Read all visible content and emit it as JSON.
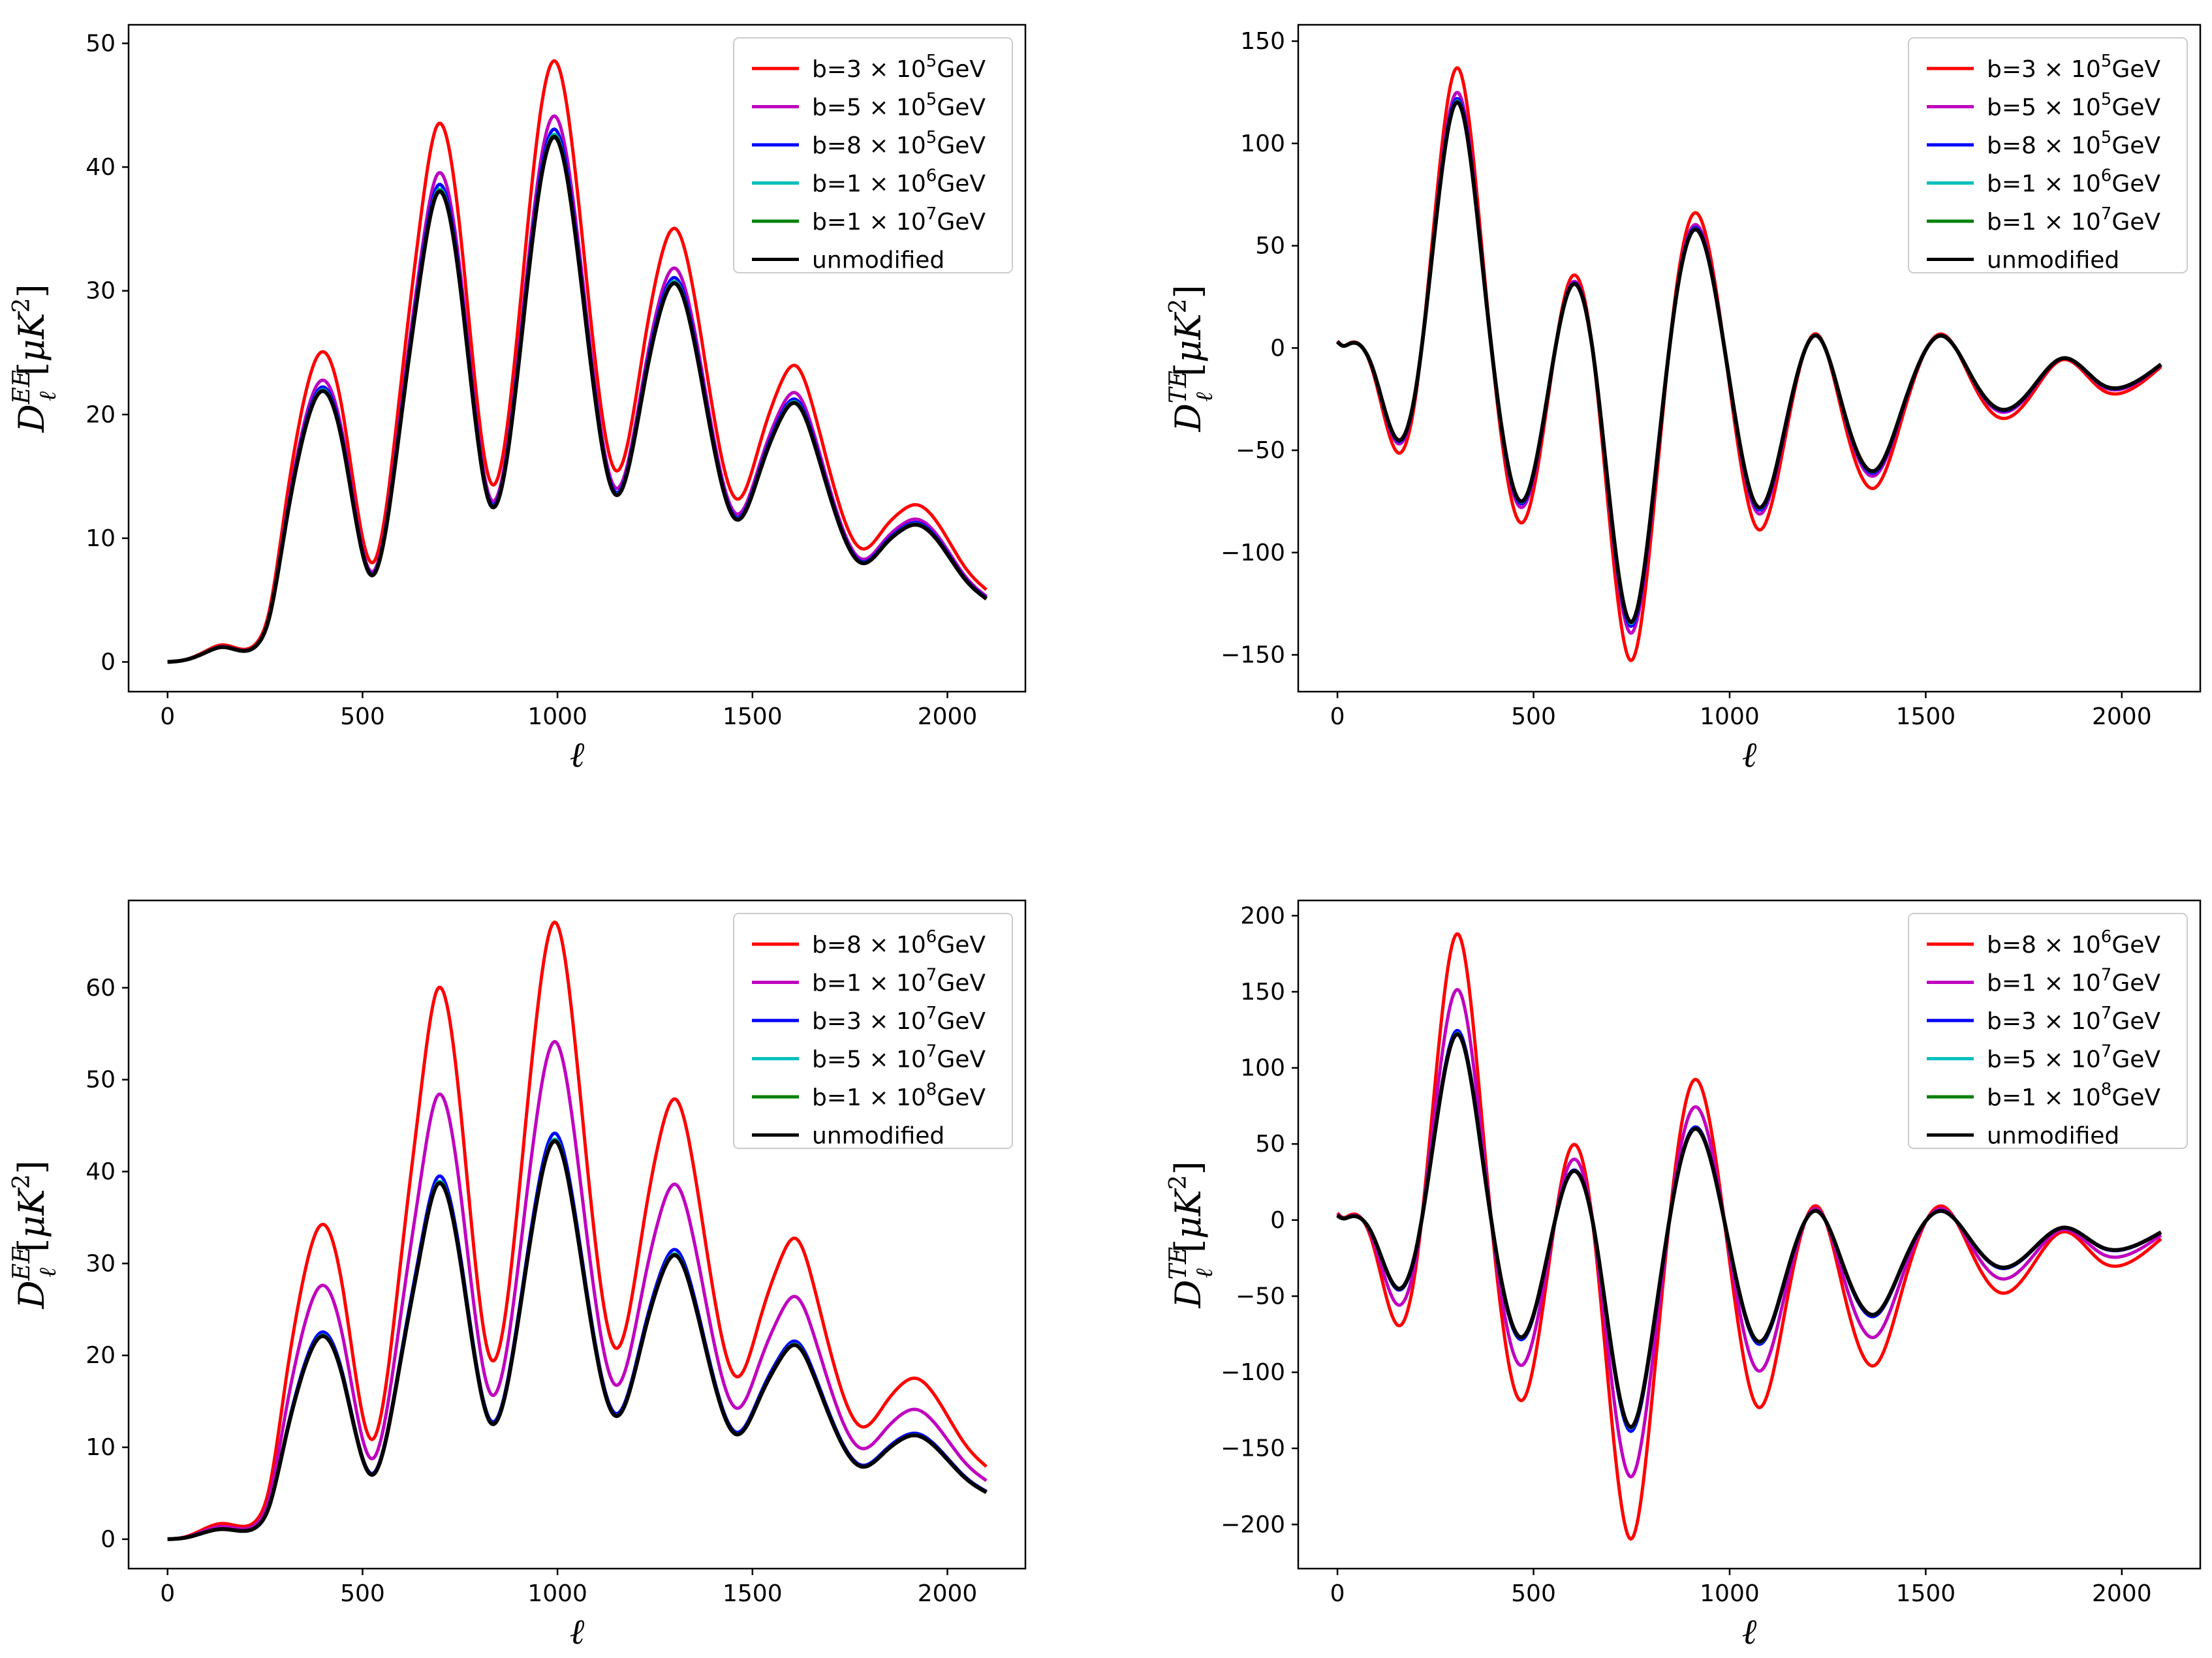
{
  "figure": {
    "description_free": true
  },
  "series_colors": [
    "#ff0000",
    "#bf00bf",
    "#0000ff",
    "#00bfbf",
    "#008000",
    "#000000"
  ],
  "chart_data": [
    {
      "type": "line",
      "panel": "top-left",
      "spectrum": "EE",
      "xlabel": "ℓ",
      "ylabel": "D_ℓ^EE[μK²]",
      "ylabel_base": "D",
      "ylabel_sub": "ℓ",
      "ylabel_sup": "EE",
      "ylabel_unit_open": "[",
      "ylabel_unit": "μK",
      "ylabel_unit_sup": "2",
      "ylabel_unit_close": "]",
      "xlim": [
        -100,
        2200
      ],
      "ylim": [
        -2.4,
        51.5
      ],
      "xticks": [
        0,
        500,
        1000,
        1500,
        2000
      ],
      "yticks": [
        0,
        10,
        20,
        30,
        40,
        50
      ],
      "legend_position": "top-right",
      "scale_factors": [
        1.145,
        1.04,
        1.015,
        1.005,
        1.002,
        1.0
      ],
      "series": [
        {
          "name": "b=3 × 10⁵GeV",
          "label": "b=3",
          "mult": "3",
          "exp": "5",
          "unit": "GeV"
        },
        {
          "name": "b=5 × 10⁵GeV",
          "label": "b=5",
          "mult": "5",
          "exp": "5",
          "unit": "GeV"
        },
        {
          "name": "b=8 × 10⁵GeV",
          "label": "b=8",
          "mult": "8",
          "exp": "5",
          "unit": "GeV"
        },
        {
          "name": "b=1 × 10⁶GeV",
          "label": "b=1",
          "mult": "1",
          "exp": "6",
          "unit": "GeV"
        },
        {
          "name": "b=1 × 10⁷GeV",
          "label": "b=1",
          "mult": "1",
          "exp": "7",
          "unit": "GeV"
        },
        {
          "name": "unmodified",
          "label": "unmodified"
        }
      ],
      "base_curve": {
        "x": [
          0,
          50,
          100,
          140,
          190,
          230,
          260,
          300,
          350,
          397,
          450,
          525,
          600,
          650,
          692,
          750,
          830,
          900,
          950,
          995,
          1050,
          1150,
          1220,
          1265,
          1302,
          1350,
          1460,
          1520,
          1570,
          1612,
          1660,
          1780,
          1840,
          1880,
          1918,
          1970,
          2050,
          2100
        ],
        "y": [
          0,
          0.2,
          0.8,
          1.2,
          0.9,
          1.4,
          3.5,
          10.5,
          18.5,
          21.9,
          17.5,
          7.0,
          20,
          31.5,
          37.9,
          30.5,
          12.6,
          24,
          37.5,
          42.4,
          33.5,
          13.5,
          22,
          28.5,
          30.6,
          26,
          11.5,
          15.5,
          19.5,
          20.9,
          17.5,
          8.0,
          9.5,
          10.6,
          11.1,
          10.0,
          6.5,
          5.1
        ]
      }
    },
    {
      "type": "line",
      "panel": "top-right",
      "spectrum": "TE",
      "xlabel": "ℓ",
      "ylabel": "D_ℓ^TE[μK²]",
      "ylabel_base": "D",
      "ylabel_sub": "ℓ",
      "ylabel_sup": "TE",
      "ylabel_unit_open": "[",
      "ylabel_unit": "μK",
      "ylabel_unit_sup": "2",
      "ylabel_unit_close": "]",
      "xlim": [
        -100,
        2200
      ],
      "ylim": [
        -168,
        158
      ],
      "xticks": [
        0,
        500,
        1000,
        1500,
        2000
      ],
      "yticks": [
        -150,
        -100,
        -50,
        0,
        50,
        100,
        150
      ],
      "legend_position": "top-right",
      "scale_factors": [
        1.14,
        1.04,
        1.015,
        1.005,
        1.002,
        1.0
      ],
      "series": [
        {
          "name": "b=3 × 10⁵GeV",
          "label": "b=3",
          "mult": "3",
          "exp": "5",
          "unit": "GeV"
        },
        {
          "name": "b=5 × 10⁵GeV",
          "label": "b=5",
          "mult": "5",
          "exp": "5",
          "unit": "GeV"
        },
        {
          "name": "b=8 × 10⁵GeV",
          "label": "b=8",
          "mult": "8",
          "exp": "5",
          "unit": "GeV"
        },
        {
          "name": "b=1 × 10⁶GeV",
          "label": "b=1",
          "mult": "1",
          "exp": "6",
          "unit": "GeV"
        },
        {
          "name": "b=1 × 10⁷GeV",
          "label": "b=1",
          "mult": "1",
          "exp": "7",
          "unit": "GeV"
        },
        {
          "name": "unmodified",
          "label": "unmodified"
        }
      ],
      "base_curve": {
        "x": [
          0,
          15,
          30,
          60,
          90,
          155,
          200,
          250,
          308,
          370,
          470,
          530,
          595,
          650,
          750,
          800,
          860,
          912,
          970,
          1075,
          1140,
          1222,
          1290,
          1370,
          1440,
          1540,
          1620,
          1690,
          1770,
          1850,
          1950,
          2020,
          2100
        ],
        "y": [
          3,
          1,
          2,
          1,
          -10,
          -45,
          -20,
          60,
          120,
          40,
          -75,
          -30,
          30,
          0,
          -134,
          -80,
          20,
          58,
          20,
          -78,
          -40,
          6,
          -30,
          -60,
          -30,
          6,
          -15,
          -30,
          -20,
          -5,
          -18,
          -18,
          -8
        ]
      }
    },
    {
      "type": "line",
      "panel": "bottom-left",
      "spectrum": "EE",
      "xlabel": "ℓ",
      "ylabel": "D_ℓ^EE[μK²]",
      "ylabel_base": "D",
      "ylabel_sub": "ℓ",
      "ylabel_sup": "EE",
      "ylabel_unit_open": "[",
      "ylabel_unit": "μK",
      "ylabel_unit_sup": "2",
      "ylabel_unit_close": "]",
      "xlim": [
        -100,
        2200
      ],
      "ylim": [
        -3.2,
        69.5
      ],
      "xticks": [
        0,
        500,
        1000,
        1500,
        2000
      ],
      "yticks": [
        0,
        10,
        20,
        30,
        40,
        50,
        60
      ],
      "legend_position": "top-right",
      "scale_factors": [
        1.55,
        1.25,
        1.02,
        1.005,
        1.002,
        1.0
      ],
      "series": [
        {
          "name": "b=8 × 10⁶GeV",
          "label": "b=8",
          "mult": "8",
          "exp": "6",
          "unit": "GeV"
        },
        {
          "name": "b=1 × 10⁷GeV",
          "label": "b=1",
          "mult": "1",
          "exp": "7",
          "unit": "GeV"
        },
        {
          "name": "b=3 × 10⁷GeV",
          "label": "b=3",
          "mult": "3",
          "exp": "7",
          "unit": "GeV"
        },
        {
          "name": "b=5 × 10⁷GeV",
          "label": "b=5",
          "mult": "5",
          "exp": "7",
          "unit": "GeV"
        },
        {
          "name": "b=1 × 10⁸GeV",
          "label": "b=1",
          "mult": "1",
          "exp": "8",
          "unit": "GeV"
        },
        {
          "name": "unmodified",
          "label": "unmodified"
        }
      ],
      "base_curve": {
        "x": [
          0,
          50,
          100,
          140,
          190,
          230,
          260,
          300,
          350,
          397,
          450,
          525,
          600,
          650,
          692,
          750,
          830,
          900,
          950,
          995,
          1050,
          1150,
          1220,
          1265,
          1302,
          1350,
          1460,
          1520,
          1570,
          1612,
          1660,
          1780,
          1840,
          1880,
          1918,
          1970,
          2050,
          2100
        ],
        "y": [
          0,
          0.2,
          0.8,
          1.1,
          0.9,
          1.4,
          3.5,
          10.5,
          18.5,
          22.1,
          17.5,
          7.0,
          20,
          31.5,
          38.6,
          30.5,
          12.6,
          24,
          37.5,
          43.3,
          33.5,
          13.4,
          22,
          28.5,
          30.9,
          26,
          11.4,
          15.5,
          19.5,
          21.1,
          17.5,
          7.9,
          9.5,
          10.8,
          11.3,
          10.0,
          6.5,
          5.1
        ]
      }
    },
    {
      "type": "line",
      "panel": "bottom-right",
      "spectrum": "TE",
      "xlabel": "ℓ",
      "ylabel": "D_ℓ^TE[μK²]",
      "ylabel_base": "D",
      "ylabel_sub": "ℓ",
      "ylabel_sup": "TE",
      "ylabel_unit_open": "[",
      "ylabel_unit": "μK",
      "ylabel_unit_sup": "2",
      "ylabel_unit_close": "]",
      "xlim": [
        -100,
        2200
      ],
      "ylim": [
        -229,
        210
      ],
      "xticks": [
        0,
        500,
        1000,
        1500,
        2000
      ],
      "yticks": [
        -200,
        -150,
        -100,
        -50,
        0,
        50,
        100,
        150,
        200
      ],
      "legend_position": "top-right",
      "scale_factors": [
        1.54,
        1.24,
        1.02,
        1.005,
        1.002,
        1.0
      ],
      "series": [
        {
          "name": "b=8 × 10⁶GeV",
          "label": "b=8",
          "mult": "8",
          "exp": "6",
          "unit": "GeV"
        },
        {
          "name": "b=1 × 10⁷GeV",
          "label": "b=1",
          "mult": "1",
          "exp": "7",
          "unit": "GeV"
        },
        {
          "name": "b=3 × 10⁷GeV",
          "label": "b=3",
          "mult": "3",
          "exp": "7",
          "unit": "GeV"
        },
        {
          "name": "b=5 × 10⁷GeV",
          "label": "b=5",
          "mult": "5",
          "exp": "7",
          "unit": "GeV"
        },
        {
          "name": "b=1 × 10⁸GeV",
          "label": "b=1",
          "mult": "1",
          "exp": "8",
          "unit": "GeV"
        },
        {
          "name": "unmodified",
          "label": "unmodified"
        }
      ],
      "base_curve": {
        "x": [
          0,
          15,
          30,
          60,
          90,
          155,
          200,
          250,
          308,
          370,
          470,
          530,
          595,
          650,
          750,
          800,
          860,
          912,
          970,
          1075,
          1140,
          1222,
          1290,
          1370,
          1440,
          1540,
          1620,
          1690,
          1770,
          1850,
          1950,
          2020,
          2100
        ],
        "y": [
          3,
          1,
          2,
          1,
          -10,
          -45,
          -20,
          60,
          122,
          40,
          -77,
          -30,
          31,
          0,
          -136,
          -80,
          20,
          60,
          20,
          -80,
          -40,
          6,
          -30,
          -62,
          -30,
          6,
          -15,
          -31,
          -20,
          -5,
          -18,
          -18,
          -8
        ]
      }
    }
  ]
}
